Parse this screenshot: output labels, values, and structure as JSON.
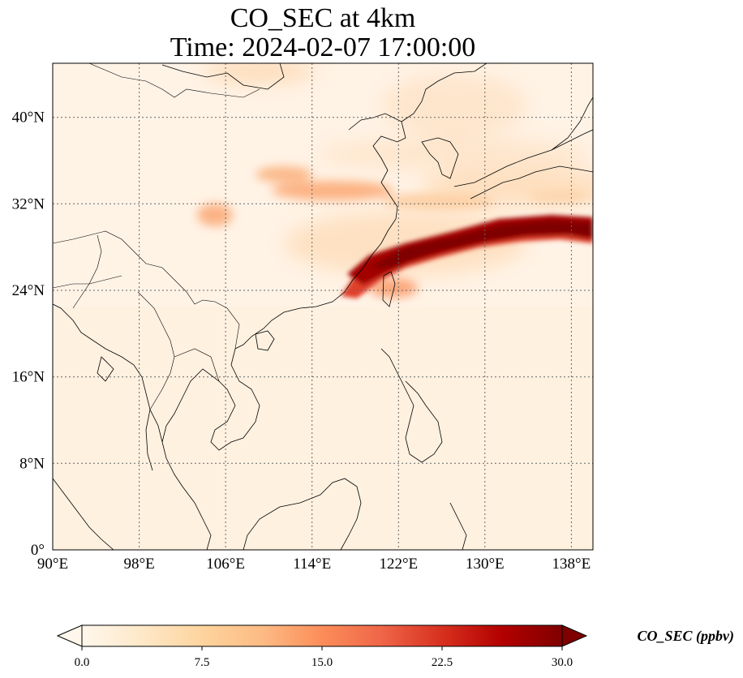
{
  "title": {
    "line1": "CO_SEC at 4km",
    "line2": "Time: 2024-02-07 17:00:00"
  },
  "map": {
    "lon_range": [
      90,
      140
    ],
    "lat_range": [
      0,
      45
    ],
    "lon_ticks": [
      "90°E",
      "98°E",
      "106°E",
      "114°E",
      "122°E",
      "130°E",
      "138°E"
    ],
    "lat_ticks": [
      "0°",
      "8°N",
      "16°N",
      "24°N",
      "32°N",
      "40°N"
    ],
    "gridlines": true
  },
  "colorbar": {
    "label": "CO_SEC (ppbv)",
    "ticks": [
      "0.0",
      "7.5",
      "15.0",
      "22.5",
      "30.0"
    ],
    "range": [
      0,
      30
    ],
    "extend": "both",
    "colormap": "OrRd",
    "colors": [
      "#fff7ec",
      "#fee8c8",
      "#fdd49e",
      "#fdbb84",
      "#fc8d59",
      "#ef6548",
      "#d7301f",
      "#b30000",
      "#7f0000"
    ]
  }
}
